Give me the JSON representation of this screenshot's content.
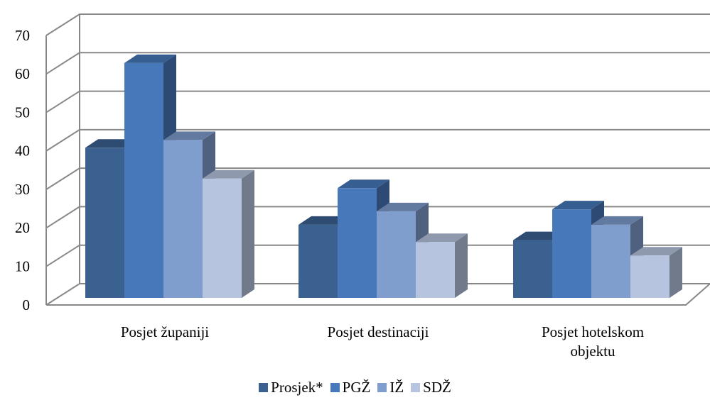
{
  "chart_data": {
    "type": "bar3d",
    "categories": [
      "Posjet županiji",
      "Posjet destinaciji",
      "Posjet hotelskom objektu"
    ],
    "series": [
      {
        "name": "Prosjek*",
        "color": "#3b6191",
        "values": [
          39,
          19,
          15
        ]
      },
      {
        "name": "PGŽ",
        "color": "#4778b9",
        "values": [
          61,
          28.5,
          23
        ]
      },
      {
        "name": "IŽ",
        "color": "#7f9dcd",
        "values": [
          41,
          22.5,
          19
        ]
      },
      {
        "name": "SDŽ",
        "color": "#b7c4df",
        "values": [
          31,
          14.5,
          11
        ]
      }
    ],
    "ylim": [
      0,
      70
    ],
    "yticks": [
      0,
      10,
      20,
      30,
      40,
      50,
      60,
      70
    ],
    "grid": true
  }
}
